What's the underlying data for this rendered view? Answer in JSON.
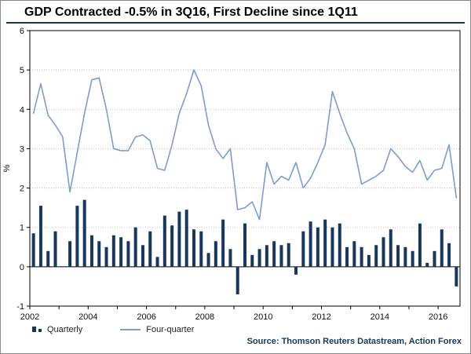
{
  "chart": {
    "title": "GDP Contracted -0.5% in 3Q16, First Decline since 1Q11",
    "legend": {
      "quarterly": "Quarterly",
      "four_quarter": "Four-quarter"
    },
    "source": "Source: Thomson Reuters Datastream, Action Forex",
    "ylabel": "%",
    "accent_color": "#17375E",
    "source_color": "#17375E",
    "frame_rule_color": "#17375E"
  },
  "chart_data": {
    "type": "bar",
    "title": "GDP Contracted -0.5% in 3Q16, First Decline since 1Q11",
    "xlabel": "",
    "ylabel": "%",
    "ylim": [
      -1,
      6
    ],
    "yticks": [
      -1,
      0,
      1,
      2,
      3,
      4,
      5,
      6
    ],
    "x_start_year": 2002,
    "x_end_year": 2016,
    "frequency": "quarterly",
    "x_tick_years": [
      2002,
      2004,
      2006,
      2008,
      2010,
      2012,
      2014,
      2016
    ],
    "grid": true,
    "legend_position": "bottom-left",
    "series": [
      {
        "name": "Quarterly",
        "type": "bar",
        "color": "#17375E",
        "values": [
          0.85,
          1.55,
          0.4,
          0.9,
          0.0,
          0.65,
          1.55,
          1.7,
          0.8,
          0.65,
          0.5,
          0.8,
          0.75,
          0.65,
          1.0,
          0.55,
          0.9,
          0.25,
          1.3,
          1.05,
          1.4,
          1.45,
          0.95,
          0.9,
          0.35,
          0.65,
          1.2,
          0.45,
          -0.7,
          1.1,
          0.3,
          0.45,
          0.55,
          0.65,
          0.55,
          0.6,
          -0.2,
          0.9,
          1.15,
          1.0,
          1.2,
          1.0,
          1.1,
          0.5,
          0.65,
          0.5,
          0.3,
          0.55,
          0.75,
          0.95,
          0.55,
          0.5,
          0.4,
          1.1,
          0.1,
          0.4,
          0.95,
          0.6,
          -0.5
        ]
      },
      {
        "name": "Four-quarter",
        "type": "line",
        "color": "#7E9BD4",
        "values": [
          3.9,
          4.65,
          3.85,
          3.6,
          3.3,
          1.9,
          2.9,
          3.9,
          4.75,
          4.8,
          4.0,
          3.0,
          2.95,
          2.95,
          3.3,
          3.35,
          3.2,
          2.5,
          2.45,
          3.1,
          3.9,
          4.4,
          5.0,
          4.6,
          3.6,
          3.0,
          2.75,
          3.0,
          1.45,
          1.5,
          1.65,
          1.2,
          2.65,
          2.1,
          2.3,
          2.2,
          2.65,
          2.0,
          2.25,
          2.65,
          3.1,
          4.45,
          3.9,
          3.4,
          3.0,
          2.1,
          2.2,
          2.3,
          2.45,
          3.0,
          2.8,
          2.55,
          2.4,
          2.7,
          2.2,
          2.45,
          2.5,
          3.1,
          1.75
        ]
      }
    ]
  }
}
